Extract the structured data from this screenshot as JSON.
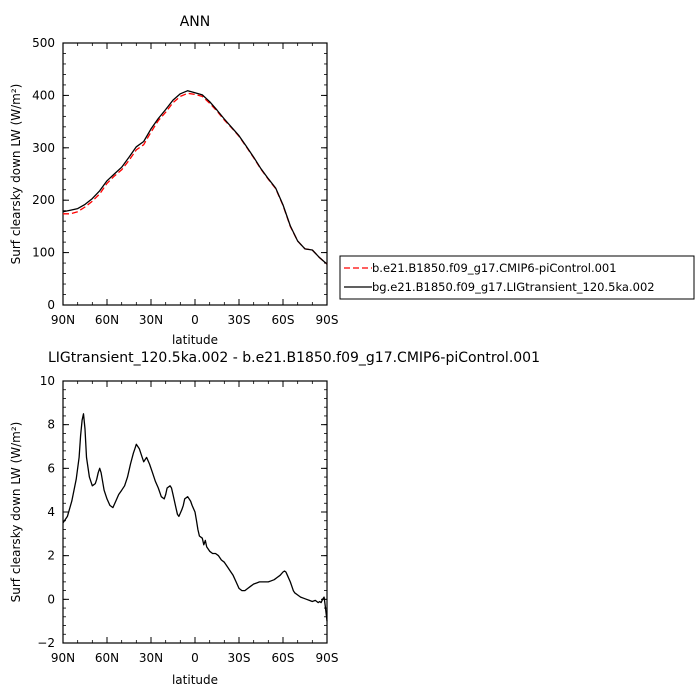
{
  "chart_data": [
    {
      "type": "line",
      "title": "ANN",
      "xlabel": "latitude",
      "ylabel": "Surf clearsky down LW (W/m²)",
      "xlim": [
        90,
        -90
      ],
      "ylim": [
        0,
        500
      ],
      "xticks": [
        90,
        60,
        30,
        0,
        -30,
        -60,
        -90
      ],
      "xtick_labels": [
        "90N",
        "60N",
        "30N",
        "0",
        "30S",
        "60S",
        "90S"
      ],
      "yticks": [
        0,
        100,
        200,
        300,
        400,
        500
      ],
      "ytick_labels": [
        "0",
        "100",
        "200",
        "300",
        "400",
        "500"
      ],
      "legend_position": "right",
      "series": [
        {
          "name": "b.e21.B1850.f09_g17.CMIP6-piControl.001",
          "color": "#ff0000",
          "dashed": true,
          "x": [
            90,
            85,
            80,
            75,
            70,
            65,
            60,
            55,
            50,
            45,
            40,
            35,
            30,
            25,
            20,
            15,
            10,
            5,
            0,
            -5,
            -10,
            -15,
            -20,
            -25,
            -30,
            -35,
            -40,
            -45,
            -50,
            -55,
            -60,
            -65,
            -70,
            -75,
            -80,
            -85,
            -90
          ],
          "y": [
            174,
            174,
            178,
            187,
            198,
            212,
            232,
            246,
            258,
            276,
            296,
            306,
            330,
            352,
            368,
            386,
            398,
            404,
            402,
            398,
            385,
            370,
            353,
            338,
            322,
            302,
            281,
            259,
            240,
            222,
            190,
            150,
            122,
            107,
            105,
            90,
            78
          ]
        },
        {
          "name": "bg.e21.B1850.f09_g17.LIGtransient_120.5ka.002",
          "color": "#000000",
          "dashed": false,
          "x": [
            90,
            85,
            80,
            75,
            70,
            65,
            60,
            55,
            50,
            45,
            40,
            35,
            30,
            25,
            20,
            15,
            10,
            5,
            0,
            -5,
            -10,
            -15,
            -20,
            -25,
            -30,
            -35,
            -40,
            -45,
            -50,
            -55,
            -60,
            -65,
            -70,
            -75,
            -80,
            -85,
            -90
          ],
          "y": [
            178,
            181,
            184,
            192,
            203,
            218,
            237,
            250,
            263,
            282,
            302,
            312,
            336,
            356,
            373,
            391,
            403,
            409,
            405,
            401,
            388,
            372,
            355,
            339,
            323,
            303,
            282,
            260,
            241,
            223,
            191,
            151,
            122,
            107,
            105,
            90,
            78
          ]
        }
      ]
    },
    {
      "type": "line",
      "title": "LIGtransient_120.5ka.002 - b.e21.B1850.f09_g17.CMIP6-piControl.001",
      "xlabel": "latitude",
      "ylabel": "Surf clearsky down LW (W/m²)",
      "xlim": [
        90,
        -90
      ],
      "ylim": [
        -2,
        10
      ],
      "xticks": [
        90,
        60,
        30,
        0,
        -30,
        -60,
        -90
      ],
      "xtick_labels": [
        "90N",
        "60N",
        "30N",
        "0",
        "30S",
        "60S",
        "90S"
      ],
      "yticks": [
        -2,
        0,
        2,
        4,
        6,
        8,
        10
      ],
      "ytick_labels": [
        "−2",
        "0",
        "2",
        "4",
        "6",
        "8",
        "10"
      ],
      "series": [
        {
          "color": "#000000",
          "dashed": false,
          "x": [
            90,
            87,
            84,
            81,
            79,
            78,
            77,
            76,
            75,
            74,
            72,
            70,
            68,
            67,
            66,
            65,
            64,
            62,
            60,
            58,
            56,
            54,
            52,
            50,
            48,
            46,
            44,
            42,
            41,
            40,
            38,
            36,
            35,
            34,
            33,
            31,
            29,
            27,
            25,
            23,
            21,
            20,
            19,
            17,
            16,
            15,
            13,
            12,
            11,
            9,
            8,
            7,
            5,
            3,
            2,
            0,
            -1,
            -2,
            -3,
            -5,
            -6,
            -7,
            -8,
            -10,
            -12,
            -14,
            -16,
            -18,
            -20,
            -22,
            -24,
            -26,
            -28,
            -30,
            -32,
            -34,
            -36,
            -38,
            -40,
            -42,
            -44,
            -46,
            -48,
            -50,
            -52,
            -54,
            -56,
            -58,
            -60,
            -61,
            -62,
            -63,
            -65,
            -66,
            -67,
            -68,
            -70,
            -72,
            -74,
            -76,
            -78,
            -80,
            -82,
            -84,
            -85,
            -86,
            -87,
            -88,
            -89,
            -90
          ],
          "y": [
            3.5,
            3.8,
            4.5,
            5.5,
            6.5,
            7.5,
            8.2,
            8.5,
            7.8,
            6.5,
            5.6,
            5.2,
            5.3,
            5.5,
            5.8,
            6.0,
            5.8,
            5.0,
            4.6,
            4.3,
            4.2,
            4.5,
            4.8,
            5.0,
            5.2,
            5.6,
            6.2,
            6.7,
            6.9,
            7.1,
            6.9,
            6.5,
            6.3,
            6.4,
            6.5,
            6.2,
            5.8,
            5.4,
            5.1,
            4.7,
            4.6,
            4.8,
            5.1,
            5.2,
            5.1,
            4.8,
            4.2,
            3.9,
            3.8,
            4.1,
            4.3,
            4.6,
            4.7,
            4.5,
            4.3,
            4.0,
            3.6,
            3.2,
            2.9,
            2.8,
            2.5,
            2.7,
            2.4,
            2.2,
            2.1,
            2.1,
            2.0,
            1.8,
            1.7,
            1.5,
            1.3,
            1.1,
            0.8,
            0.5,
            0.4,
            0.4,
            0.5,
            0.6,
            0.7,
            0.75,
            0.8,
            0.8,
            0.8,
            0.8,
            0.85,
            0.9,
            1.0,
            1.1,
            1.25,
            1.3,
            1.25,
            1.1,
            0.8,
            0.6,
            0.4,
            0.3,
            0.2,
            0.1,
            0.05,
            0.0,
            -0.05,
            -0.1,
            -0.05,
            -0.15,
            -0.1,
            -0.15,
            0.0,
            0.1,
            -0.4,
            -1.0
          ]
        }
      ]
    }
  ]
}
